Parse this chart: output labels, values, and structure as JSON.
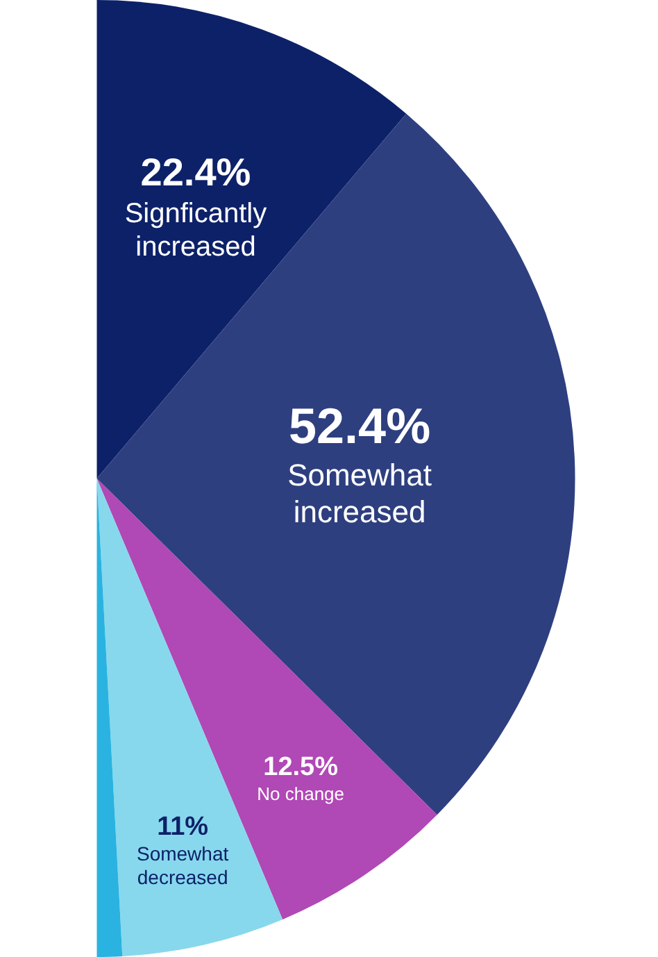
{
  "chart_data": {
    "type": "pie",
    "categories": [
      "Signficantly increased",
      "Somewhat increased",
      "No change",
      "Somewhat decreased",
      null
    ],
    "values": [
      22.4,
      52.4,
      12.5,
      11,
      1.7
    ],
    "colors": [
      "#0d2169",
      "#2e3f80",
      "#b048b5",
      "#87d8ec",
      "#2ab3e0"
    ],
    "value_labels": [
      "22.4%",
      "52.4%",
      "12.5%",
      "11%",
      null
    ]
  }
}
